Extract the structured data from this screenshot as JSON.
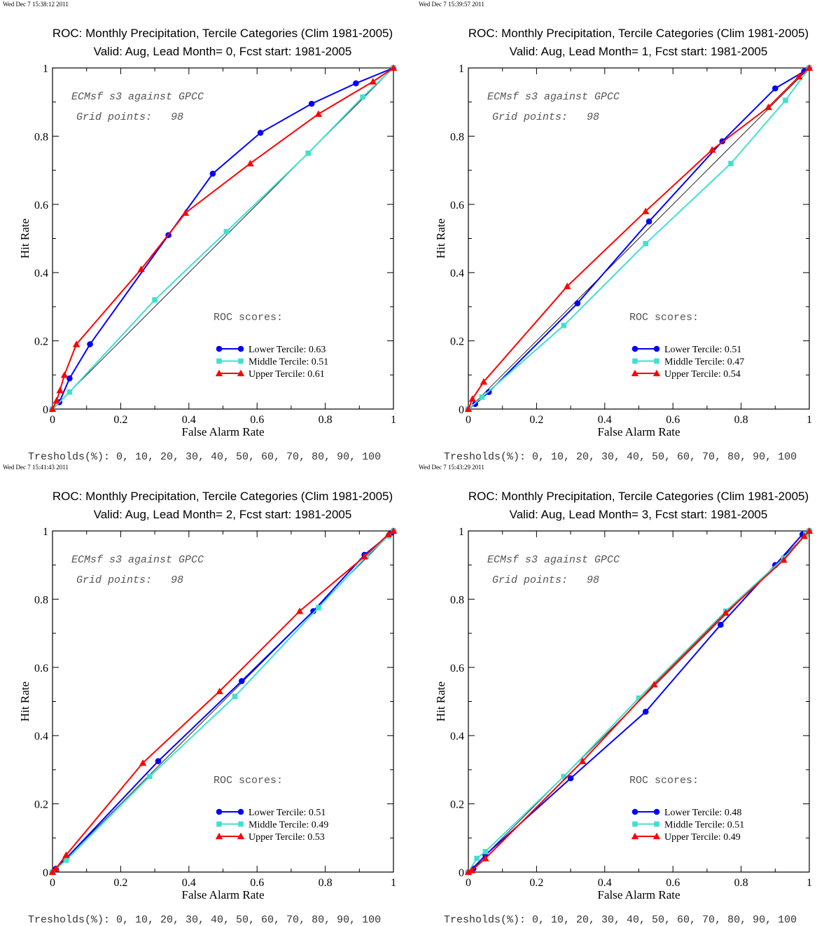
{
  "chart_data": [
    {
      "type": "line",
      "timestamp": "Wed Dec  7 15:38:12 2011",
      "title": "ROC: Monthly Precipitation, Tercile Categories (Clim 1981-2005)",
      "subtitle": "Valid: Aug, Lead Month= 0, Fcst start: 1981-2005",
      "xlabel": "False Alarm Rate",
      "ylabel": "Hit Rate",
      "xlim": [
        0,
        1
      ],
      "ylim": [
        0,
        1
      ],
      "xticks": [
        "0",
        "0.2",
        "0.4",
        "0.6",
        "0.8",
        "1"
      ],
      "yticks": [
        "0",
        "0.2",
        "0.4",
        "0.6",
        "0.8",
        "1"
      ],
      "annotation_line1": "ECMsf s3 against GPCC",
      "annotation_line2": "Grid points:   98",
      "scores_heading": "ROC scores:",
      "thresholds": "Tresholds(%): 0, 10, 20, 30, 40, 50, 60, 70, 80, 90, 100",
      "series": [
        {
          "name": "Lower Tercile: 0.63",
          "color": "#0000ff",
          "marker": "circle",
          "x": [
            0,
            0.02,
            0.05,
            0.11,
            0.34,
            0.47,
            0.61,
            0.76,
            0.89,
            1.0
          ],
          "y": [
            0,
            0.02,
            0.09,
            0.19,
            0.51,
            0.69,
            0.81,
            0.895,
            0.955,
            1.0
          ]
        },
        {
          "name": "Middle Tercile: 0.51",
          "color": "#40e0d0",
          "marker": "square",
          "x": [
            0,
            0.05,
            0.3,
            0.51,
            0.75,
            0.91,
            1.0
          ],
          "y": [
            0,
            0.05,
            0.32,
            0.52,
            0.75,
            0.915,
            1.0
          ]
        },
        {
          "name": "Upper Tercile: 0.61",
          "color": "#ff0000",
          "marker": "triangle",
          "x": [
            0,
            0.012,
            0.022,
            0.035,
            0.07,
            0.26,
            0.39,
            0.58,
            0.78,
            0.94,
            1.0
          ],
          "y": [
            0,
            0.025,
            0.055,
            0.1,
            0.19,
            0.41,
            0.575,
            0.72,
            0.865,
            0.96,
            1.0
          ]
        }
      ]
    },
    {
      "type": "line",
      "timestamp": "Wed Dec  7 15:39:57 2011",
      "title": "ROC: Monthly Precipitation, Tercile Categories (Clim 1981-2005)",
      "subtitle": "Valid: Aug, Lead Month= 1, Fcst start: 1981-2005",
      "xlabel": "False Alarm Rate",
      "ylabel": "Hit Rate",
      "xlim": [
        0,
        1
      ],
      "ylim": [
        0,
        1
      ],
      "xticks": [
        "0",
        "0.2",
        "0.4",
        "0.6",
        "0.8",
        "1"
      ],
      "yticks": [
        "0",
        "0.2",
        "0.4",
        "0.6",
        "0.8",
        "1"
      ],
      "annotation_line1": "ECMsf s3 against GPCC",
      "annotation_line2": "Grid points:   98",
      "scores_heading": "ROC scores:",
      "thresholds": "Tresholds(%): 0, 10, 20, 30, 40, 50, 60, 70, 80, 90, 100",
      "series": [
        {
          "name": "Lower Tercile: 0.51",
          "color": "#0000ff",
          "marker": "circle",
          "x": [
            0,
            0.02,
            0.06,
            0.32,
            0.53,
            0.745,
            0.9,
            0.985,
            1.0
          ],
          "y": [
            0,
            0.015,
            0.05,
            0.31,
            0.55,
            0.785,
            0.94,
            0.99,
            1.0
          ]
        },
        {
          "name": "Middle Tercile: 0.47",
          "color": "#40e0d0",
          "marker": "square",
          "x": [
            0,
            0.04,
            0.28,
            0.52,
            0.77,
            0.93,
            1.0
          ],
          "y": [
            0,
            0.035,
            0.245,
            0.485,
            0.72,
            0.905,
            1.0
          ]
        },
        {
          "name": "Upper Tercile: 0.54",
          "color": "#ff0000",
          "marker": "triangle",
          "x": [
            0,
            0.012,
            0.045,
            0.29,
            0.52,
            0.715,
            0.88,
            0.97,
            1.0
          ],
          "y": [
            0,
            0.03,
            0.08,
            0.36,
            0.58,
            0.76,
            0.885,
            0.975,
            1.0
          ]
        }
      ]
    },
    {
      "type": "line",
      "timestamp": "Wed Dec  7 15:41:43 2011",
      "title": "ROC: Monthly Precipitation, Tercile Categories (Clim 1981-2005)",
      "subtitle": "Valid: Aug, Lead Month= 2, Fcst start: 1981-2005",
      "xlabel": "False Alarm Rate",
      "ylabel": "Hit Rate",
      "xlim": [
        0,
        1
      ],
      "ylim": [
        0,
        1
      ],
      "xticks": [
        "0",
        "0.2",
        "0.4",
        "0.6",
        "0.8",
        "1"
      ],
      "yticks": [
        "0",
        "0.2",
        "0.4",
        "0.6",
        "0.8",
        "1"
      ],
      "annotation_line1": "ECMsf s3 against GPCC",
      "annotation_line2": "Grid points:   98",
      "scores_heading": "ROC scores:",
      "thresholds": "Tresholds(%): 0, 10, 20, 30, 40, 50, 60, 70, 80, 90, 100",
      "series": [
        {
          "name": "Lower Tercile: 0.51",
          "color": "#0000ff",
          "marker": "circle",
          "x": [
            0,
            0.01,
            0.04,
            0.31,
            0.555,
            0.765,
            0.915,
            0.995,
            1.0
          ],
          "y": [
            0,
            0.01,
            0.04,
            0.325,
            0.56,
            0.765,
            0.93,
            0.995,
            1.0
          ]
        },
        {
          "name": "Middle Tercile: 0.49",
          "color": "#40e0d0",
          "marker": "square",
          "x": [
            0,
            0.04,
            0.285,
            0.535,
            0.78,
            0.92,
            0.985,
            1.0
          ],
          "y": [
            0,
            0.035,
            0.28,
            0.515,
            0.775,
            0.925,
            0.985,
            1.0
          ]
        },
        {
          "name": "Upper Tercile: 0.53",
          "color": "#ff0000",
          "marker": "triangle",
          "x": [
            0,
            0.01,
            0.04,
            0.265,
            0.49,
            0.725,
            0.915,
            0.985,
            1.0
          ],
          "y": [
            0,
            0.01,
            0.05,
            0.32,
            0.53,
            0.765,
            0.925,
            0.99,
            1.0
          ]
        }
      ]
    },
    {
      "type": "line",
      "timestamp": "Wed Dec  7 15:43:29 2011",
      "title": "ROC: Monthly Precipitation, Tercile Categories (Clim 1981-2005)",
      "subtitle": "Valid: Aug, Lead Month= 3, Fcst start: 1981-2005",
      "xlabel": "False Alarm Rate",
      "ylabel": "Hit Rate",
      "xlim": [
        0,
        1
      ],
      "ylim": [
        0,
        1
      ],
      "xticks": [
        "0",
        "0.2",
        "0.4",
        "0.6",
        "0.8",
        "1"
      ],
      "yticks": [
        "0",
        "0.2",
        "0.4",
        "0.6",
        "0.8",
        "1"
      ],
      "annotation_line1": "ECMsf s3 against GPCC",
      "annotation_line2": "Grid points:   98",
      "scores_heading": "ROC scores:",
      "thresholds": "Tresholds(%): 0, 10, 20, 30, 40, 50, 60, 70, 80, 90, 100",
      "series": [
        {
          "name": "Lower Tercile: 0.48",
          "color": "#0000ff",
          "marker": "circle",
          "x": [
            0,
            0.015,
            0.05,
            0.3,
            0.52,
            0.74,
            0.9,
            0.98,
            1.0
          ],
          "y": [
            0,
            0.01,
            0.05,
            0.275,
            0.47,
            0.725,
            0.9,
            0.99,
            1.0
          ]
        },
        {
          "name": "Middle Tercile: 0.51",
          "color": "#40e0d0",
          "marker": "square",
          "x": [
            0,
            0.025,
            0.05,
            0.28,
            0.5,
            0.755,
            0.925,
            0.99,
            1.0
          ],
          "y": [
            0,
            0.04,
            0.06,
            0.28,
            0.51,
            0.765,
            0.92,
            0.99,
            1.0
          ]
        },
        {
          "name": "Upper Tercile: 0.49",
          "color": "#ff0000",
          "marker": "triangle",
          "x": [
            0,
            0.01,
            0.05,
            0.335,
            0.545,
            0.755,
            0.925,
            0.985,
            1.0
          ],
          "y": [
            0,
            0.005,
            0.04,
            0.325,
            0.55,
            0.76,
            0.915,
            0.985,
            1.0
          ]
        }
      ]
    }
  ]
}
